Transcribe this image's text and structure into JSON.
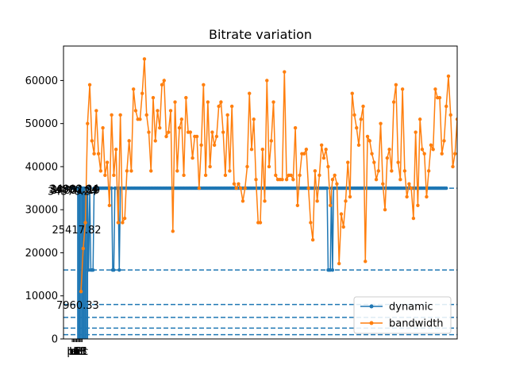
{
  "chart_data": {
    "type": "line",
    "title": "Bitrate variation",
    "xlabel": "",
    "ylabel": "",
    "xlim": [
      -8,
      352
    ],
    "ylim": [
      0,
      68000
    ],
    "yticks": [
      0,
      10000,
      20000,
      30000,
      40000,
      50000,
      60000
    ],
    "ytick_labels": [
      "0",
      "10000",
      "20000",
      "30000",
      "40000",
      "50000",
      "60000"
    ],
    "xtick_labels": [
      "pt",
      "tt",
      "bt",
      "hbt",
      "ut",
      "ocl",
      "act",
      "CE",
      "L3",
      "Bc"
    ],
    "xtick_values": [
      0,
      1,
      2,
      3,
      4,
      5,
      6,
      7,
      8,
      9
    ],
    "hlines": [
      1000,
      2500,
      5000,
      8000,
      16000,
      35000
    ],
    "legend": {
      "position": "lower-right",
      "entries": [
        "dynamic",
        "bandwidth"
      ]
    },
    "annotations": [
      {
        "text": "34370.24",
        "x": 0,
        "y": 34370.24
      },
      {
        "text": "34800.04",
        "x": 1,
        "y": 34800.04
      },
      {
        "text": "34902.94",
        "x": 2,
        "y": 34902.94
      },
      {
        "text": "34651.19",
        "x": 3,
        "y": 34651.19
      },
      {
        "text": "25417.82",
        "x": 4,
        "y": 25417.82
      },
      {
        "text": "7960.33",
        "x": 5,
        "y": 7960.33
      }
    ],
    "series": [
      {
        "name": "dynamic",
        "color": "#1f77b4",
        "low_points": [
          [
            15,
            16000
          ],
          [
            17,
            16000
          ],
          [
            18,
            16000
          ],
          [
            19,
            16000
          ],
          [
            37,
            16000
          ],
          [
            38,
            16000
          ],
          [
            43,
            16000
          ],
          [
            234,
            16000
          ],
          [
            235,
            16000
          ],
          [
            236,
            16000
          ],
          [
            238,
            16000
          ]
        ],
        "vlines": [
          [
            5,
            7960
          ],
          [
            6,
            7960
          ],
          [
            7,
            7960
          ],
          [
            8,
            7960
          ],
          [
            9,
            7960
          ],
          [
            10,
            7960
          ],
          [
            11,
            7960
          ],
          [
            12,
            7960
          ],
          [
            13,
            7960
          ],
          [
            14,
            7960
          ]
        ],
        "default_value": 35000,
        "x_start": 0,
        "x_end": 342
      },
      {
        "name": "bandwidth",
        "color": "#ff7f0e",
        "x_start": 8,
        "x_step": 2,
        "values": [
          11000,
          21000,
          27000,
          50000,
          59000,
          46000,
          43000,
          53000,
          43000,
          39000,
          49000,
          38000,
          41000,
          31000,
          52000,
          38000,
          44000,
          27000,
          52000,
          27000,
          28000,
          39000,
          46000,
          39000,
          58000,
          53000,
          51000,
          51000,
          57000,
          65000,
          52000,
          48000,
          39000,
          56000,
          46000,
          53000,
          49000,
          59000,
          60000,
          47000,
          48000,
          53000,
          25000,
          55000,
          39000,
          49000,
          51000,
          38000,
          56000,
          48000,
          48000,
          42000,
          47000,
          47000,
          35000,
          45000,
          59000,
          38000,
          55000,
          40000,
          48000,
          45000,
          47000,
          54000,
          55000,
          48000,
          38000,
          52000,
          39000,
          54000,
          36000,
          35000,
          36000,
          35000,
          32000,
          35000,
          40000,
          57000,
          44000,
          51000,
          37000,
          27000,
          27000,
          44000,
          32000,
          60000,
          40000,
          46000,
          55000,
          38000,
          37000,
          37000,
          37000,
          62000,
          37000,
          38000,
          38000,
          37000,
          49000,
          31000,
          38000,
          43000,
          43000,
          44000,
          35000,
          27000,
          23000,
          39000,
          32000,
          38000,
          45000,
          42000,
          44000,
          40000,
          31000,
          37000,
          38000,
          36000,
          17500,
          29000,
          26000,
          32000,
          41000,
          33000,
          57000,
          52000,
          49000,
          45000,
          51000,
          54000,
          18000,
          47000,
          46000,
          43000,
          41000,
          37000,
          39000,
          50000,
          36000,
          30000,
          42000,
          44000,
          39000,
          55000,
          59000,
          41000,
          37000,
          58000,
          39000,
          33000,
          36000,
          35000,
          28000,
          48000,
          31000,
          51000,
          44000,
          43000,
          33000,
          39000,
          45000,
          44000,
          58000,
          56000,
          56000,
          43000,
          46000,
          54000,
          61000,
          52000,
          40000,
          43000,
          51000,
          46000,
          44000,
          63000,
          59000,
          42000,
          52000,
          42000,
          39000,
          61000,
          40000,
          47000,
          58000,
          11000,
          39000,
          46000,
          52000,
          37000,
          41000,
          49000,
          51000,
          52000,
          37000,
          41000,
          53000,
          47000,
          39000,
          42000,
          45000,
          38000,
          33000,
          48000,
          41000,
          52000,
          54000,
          39000,
          56000,
          46000,
          46000,
          42000,
          52000,
          46000,
          39000,
          51000,
          41000,
          55000,
          43000
        ]
      }
    ]
  }
}
